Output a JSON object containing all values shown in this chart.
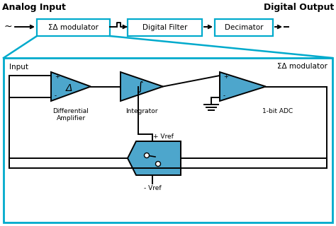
{
  "bg_color": "#ffffff",
  "blue_fill": "#4da6cc",
  "cyan_border": "#00aacc",
  "black": "#000000",
  "fig_width": 4.74,
  "fig_height": 3.2,
  "top": {
    "analog_input": "Analog Input",
    "digital_output": "Digital Output",
    "sigma_delta": "ΣΔ modulator",
    "digital_filter": "Digital Filter",
    "decimator": "Decimator"
  },
  "bottom": {
    "input": "Input",
    "sigma_delta": "ΣΔ modulator",
    "diff_amp": "Differential\nAmplifier",
    "integrator": "Integrator",
    "onebit_adc": "1-bit ADC",
    "plus_vref": "+ Vref",
    "minus_vref": "- Vref",
    "delta": "Δ",
    "integral": "∫"
  }
}
